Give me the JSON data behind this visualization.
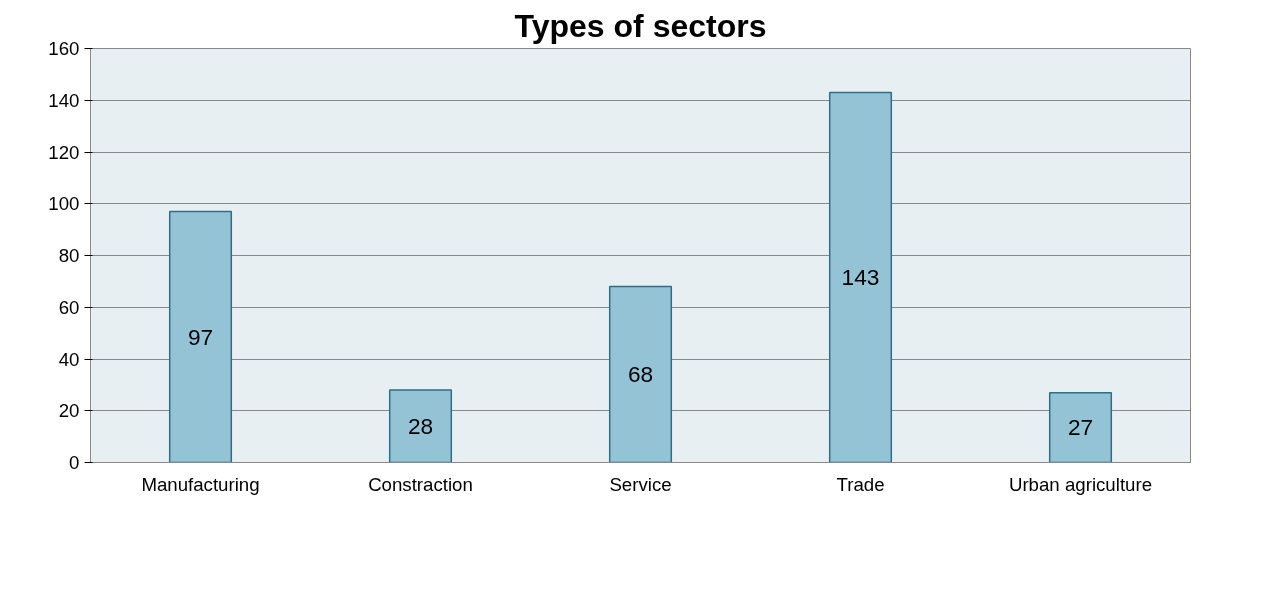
{
  "chart_data": {
    "type": "bar",
    "title": "Types of sectors",
    "categories": [
      "Manufacturing",
      "Constraction",
      "Service",
      "Trade",
      "Urban agriculture"
    ],
    "series": [
      {
        "color": "#93c3d5",
        "values": [
          97,
          28,
          68,
          143,
          27
        ]
      }
    ],
    "ylim": [
      0,
      160
    ],
    "yticks": [
      0,
      20,
      40,
      60,
      80,
      100,
      120,
      140,
      160
    ],
    "grid": "y",
    "data_labels": true
  }
}
